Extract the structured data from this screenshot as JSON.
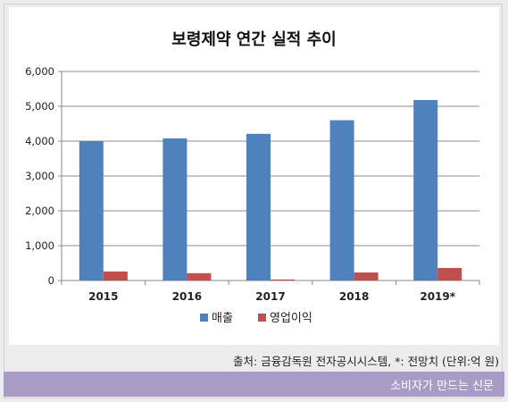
{
  "chart_data": {
    "type": "bar",
    "title": "보령제약 연간 실적 추이",
    "categories": [
      "2015",
      "2016",
      "2017",
      "2018",
      "2019*"
    ],
    "series": [
      {
        "name": "매출",
        "color": "#4f81bd",
        "values": [
          4000,
          4080,
          4210,
          4600,
          5180
        ]
      },
      {
        "name": "영업이익",
        "color": "#c0504d",
        "values": [
          260,
          210,
          30,
          230,
          360
        ]
      }
    ],
    "ylim": [
      0,
      6000
    ],
    "yticks": [
      "0",
      "1,000",
      "2,000",
      "3,000",
      "4,000",
      "5,000",
      "6,000"
    ],
    "ytick_values": [
      0,
      1000,
      2000,
      3000,
      4000,
      5000,
      6000
    ],
    "grid": true,
    "legend_position": "bottom"
  },
  "source_note": "출처: 금융감독원 전자공시시스템, *: 전망치 (단위:억 원)",
  "brand": "소비자가 만드는 신문"
}
